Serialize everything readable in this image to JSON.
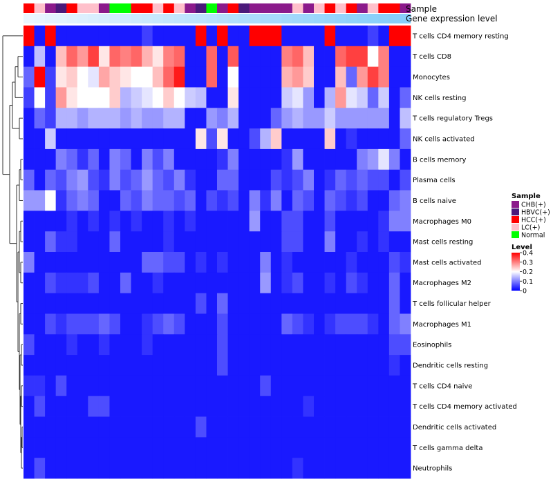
{
  "chart_data": {
    "type": "heatmap",
    "title": "",
    "annotation_tracks": [
      {
        "name": "Sample",
        "label": "Sample"
      },
      {
        "name": "Gene expression level",
        "label": "Gene expression level"
      }
    ],
    "sample_groups": [
      {
        "name": "CHB(+)",
        "color": "#8b1a8b"
      },
      {
        "name": "HBVC(+)",
        "color": "#4b1a7a"
      },
      {
        "name": "HCC(+)",
        "color": "#ff0000"
      },
      {
        "name": "LC(+)",
        "color": "#ffc0cb"
      },
      {
        "name": "Normal",
        "color": "#00ff00"
      }
    ],
    "sample_annotation": [
      "HCC(+)",
      "LC(+)",
      "CHB(+)",
      "HBVC(+)",
      "HCC(+)",
      "LC(+)",
      "LC(+)",
      "CHB(+)",
      "Normal",
      "Normal",
      "HCC(+)",
      "HCC(+)",
      "LC(+)",
      "HCC(+)",
      "LC(+)",
      "CHB(+)",
      "HBVC(+)",
      "Normal",
      "CHB(+)",
      "HCC(+)",
      "HBVC(+)",
      "CHB(+)",
      "CHB(+)",
      "CHB(+)",
      "CHB(+)",
      "LC(+)",
      "CHB(+)",
      "LC(+)",
      "HCC(+)",
      "LC(+)",
      "HCC(+)",
      "CHB(+)",
      "LC(+)",
      "HCC(+)",
      "HCC(+)",
      "CHB(+)"
    ],
    "expression_annotation_colors": {
      "left": "#f0f8ff",
      "right": "#87cefa"
    },
    "expression_annotation": [
      0.05,
      0.08,
      0.11,
      0.13,
      0.16,
      0.19,
      0.22,
      0.25,
      0.28,
      0.3,
      0.33,
      0.36,
      0.39,
      0.42,
      0.45,
      0.48,
      0.5,
      0.53,
      0.56,
      0.59,
      0.62,
      0.65,
      0.68,
      0.7,
      0.73,
      0.76,
      0.79,
      0.82,
      0.85,
      0.88,
      0.91,
      0.93,
      0.95,
      0.97,
      0.99,
      1.0
    ],
    "rows": [
      "T cells CD4 memory resting",
      "T cells CD8",
      "Monocytes",
      "NK cells resting",
      "T cells regulatory  Tregs",
      "NK cells activated",
      "B cells memory",
      "Plasma cells",
      "B cells naive",
      "Macrophages M0",
      "Mast cells resting",
      "Mast cells activated",
      "Macrophages M2",
      "T cells follicular helper",
      "Macrophages M1",
      "Eosinophils",
      "Dendritic cells resting",
      "T cells CD4 naive",
      "T cells CD4 memory activated",
      "Dendritic cells activated",
      "T cells gamma delta",
      "Neutrophils"
    ],
    "values": [
      [
        0.4,
        0.02,
        0.4,
        0.02,
        0.02,
        0.02,
        0.02,
        0.02,
        0.02,
        0.02,
        0.02,
        0.05,
        0.02,
        0.02,
        0.02,
        0.02,
        0.4,
        0.02,
        0.4,
        0.02,
        0.02,
        0.4,
        0.4,
        0.4,
        0.02,
        0.02,
        0.02,
        0.02,
        0.4,
        0.02,
        0.02,
        0.02,
        0.05,
        0.02,
        0.4,
        0.4
      ],
      [
        0.02,
        0.15,
        0.02,
        0.25,
        0.32,
        0.28,
        0.35,
        0.22,
        0.32,
        0.3,
        0.32,
        0.26,
        0.22,
        0.3,
        0.32,
        0.02,
        0.02,
        0.32,
        0.02,
        0.33,
        0.02,
        0.02,
        0.02,
        0.02,
        0.3,
        0.32,
        0.25,
        0.02,
        0.02,
        0.32,
        0.35,
        0.35,
        0.2,
        0.3,
        0.02,
        0.02
      ],
      [
        0.08,
        0.4,
        0.05,
        0.22,
        0.24,
        0.2,
        0.18,
        0.27,
        0.24,
        0.22,
        0.2,
        0.2,
        0.25,
        0.32,
        0.38,
        0.02,
        0.02,
        0.32,
        0.02,
        0.2,
        0.02,
        0.02,
        0.02,
        0.02,
        0.26,
        0.28,
        0.24,
        0.02,
        0.02,
        0.25,
        0.08,
        0.28,
        0.35,
        0.3,
        0.02,
        0.02
      ],
      [
        0.05,
        0.2,
        0.05,
        0.28,
        0.22,
        0.2,
        0.2,
        0.2,
        0.24,
        0.14,
        0.16,
        0.18,
        0.2,
        0.24,
        0.2,
        0.16,
        0.15,
        0.02,
        0.02,
        0.22,
        0.02,
        0.02,
        0.02,
        0.02,
        0.16,
        0.18,
        0.12,
        0.02,
        0.14,
        0.28,
        0.18,
        0.16,
        0.08,
        0.16,
        0.02,
        0.08
      ],
      [
        0.02,
        0.08,
        0.05,
        0.14,
        0.14,
        0.12,
        0.14,
        0.14,
        0.14,
        0.12,
        0.14,
        0.12,
        0.12,
        0.14,
        0.14,
        0.02,
        0.02,
        0.12,
        0.1,
        0.14,
        0.02,
        0.02,
        0.02,
        0.08,
        0.12,
        0.14,
        0.12,
        0.12,
        0.16,
        0.12,
        0.12,
        0.12,
        0.12,
        0.12,
        0.02,
        0.15
      ],
      [
        0.02,
        0.02,
        0.16,
        0.02,
        0.02,
        0.02,
        0.02,
        0.02,
        0.02,
        0.02,
        0.02,
        0.02,
        0.02,
        0.02,
        0.02,
        0.02,
        0.22,
        0.06,
        0.22,
        0.02,
        0.02,
        0.06,
        0.14,
        0.24,
        0.02,
        0.02,
        0.02,
        0.02,
        0.24,
        0.02,
        0.04,
        0.02,
        0.02,
        0.02,
        0.02,
        0.08
      ],
      [
        0.02,
        0.02,
        0.02,
        0.1,
        0.08,
        0.04,
        0.08,
        0.02,
        0.1,
        0.08,
        0.02,
        0.1,
        0.06,
        0.1,
        0.02,
        0.02,
        0.02,
        0.02,
        0.04,
        0.1,
        0.02,
        0.02,
        0.02,
        0.02,
        0.04,
        0.12,
        0.02,
        0.02,
        0.02,
        0.02,
        0.02,
        0.1,
        0.12,
        0.18,
        0.1,
        0.02
      ],
      [
        0.08,
        0.02,
        0.08,
        0.06,
        0.1,
        0.12,
        0.06,
        0.04,
        0.1,
        0.06,
        0.08,
        0.12,
        0.08,
        0.06,
        0.1,
        0.04,
        0.02,
        0.02,
        0.08,
        0.08,
        0.02,
        0.02,
        0.02,
        0.06,
        0.04,
        0.06,
        0.1,
        0.02,
        0.04,
        0.08,
        0.06,
        0.08,
        0.06,
        0.06,
        0.02,
        0.06
      ],
      [
        0.12,
        0.12,
        0.2,
        0.04,
        0.08,
        0.1,
        0.08,
        0.02,
        0.02,
        0.08,
        0.06,
        0.1,
        0.08,
        0.08,
        0.06,
        0.08,
        0.02,
        0.06,
        0.04,
        0.06,
        0.02,
        0.1,
        0.04,
        0.1,
        0.02,
        0.08,
        0.06,
        0.02,
        0.08,
        0.06,
        0.04,
        0.06,
        0.02,
        0.02,
        0.08,
        0.1
      ],
      [
        0.02,
        0.02,
        0.02,
        0.02,
        0.04,
        0.02,
        0.04,
        0.02,
        0.04,
        0.02,
        0.04,
        0.02,
        0.02,
        0.04,
        0.02,
        0.04,
        0.02,
        0.02,
        0.02,
        0.02,
        0.02,
        0.12,
        0.02,
        0.02,
        0.06,
        0.06,
        0.02,
        0.02,
        0.06,
        0.02,
        0.02,
        0.02,
        0.02,
        0.04,
        0.1,
        0.1
      ],
      [
        0.02,
        0.02,
        0.08,
        0.04,
        0.04,
        0.02,
        0.02,
        0.02,
        0.08,
        0.02,
        0.02,
        0.02,
        0.02,
        0.04,
        0.02,
        0.02,
        0.02,
        0.02,
        0.02,
        0.02,
        0.02,
        0.02,
        0.02,
        0.02,
        0.06,
        0.06,
        0.02,
        0.02,
        0.1,
        0.02,
        0.02,
        0.04,
        0.02,
        0.04,
        0.02,
        0.02
      ],
      [
        0.1,
        0.02,
        0.02,
        0.02,
        0.02,
        0.02,
        0.02,
        0.02,
        0.02,
        0.02,
        0.02,
        0.08,
        0.08,
        0.06,
        0.06,
        0.02,
        0.04,
        0.02,
        0.04,
        0.02,
        0.02,
        0.02,
        0.1,
        0.02,
        0.04,
        0.02,
        0.02,
        0.02,
        0.02,
        0.02,
        0.04,
        0.02,
        0.02,
        0.02,
        0.06,
        0.04
      ],
      [
        0.02,
        0.02,
        0.06,
        0.04,
        0.04,
        0.04,
        0.06,
        0.02,
        0.02,
        0.08,
        0.02,
        0.02,
        0.04,
        0.02,
        0.02,
        0.02,
        0.02,
        0.02,
        0.02,
        0.02,
        0.02,
        0.02,
        0.12,
        0.02,
        0.04,
        0.06,
        0.02,
        0.02,
        0.04,
        0.02,
        0.06,
        0.04,
        0.02,
        0.02,
        0.08,
        0.02
      ],
      [
        0.02,
        0.02,
        0.02,
        0.02,
        0.02,
        0.02,
        0.02,
        0.02,
        0.02,
        0.02,
        0.02,
        0.02,
        0.02,
        0.02,
        0.02,
        0.02,
        0.06,
        0.02,
        0.08,
        0.02,
        0.02,
        0.02,
        0.02,
        0.02,
        0.02,
        0.02,
        0.02,
        0.02,
        0.02,
        0.02,
        0.02,
        0.02,
        0.02,
        0.02,
        0.08,
        0.02
      ],
      [
        0.02,
        0.02,
        0.06,
        0.04,
        0.06,
        0.06,
        0.06,
        0.08,
        0.06,
        0.02,
        0.02,
        0.04,
        0.06,
        0.08,
        0.06,
        0.02,
        0.02,
        0.02,
        0.06,
        0.02,
        0.02,
        0.02,
        0.02,
        0.02,
        0.08,
        0.06,
        0.04,
        0.02,
        0.04,
        0.06,
        0.06,
        0.06,
        0.04,
        0.02,
        0.08,
        0.1
      ],
      [
        0.06,
        0.02,
        0.02,
        0.02,
        0.04,
        0.02,
        0.02,
        0.04,
        0.02,
        0.02,
        0.02,
        0.04,
        0.02,
        0.02,
        0.02,
        0.02,
        0.02,
        0.02,
        0.06,
        0.02,
        0.02,
        0.02,
        0.02,
        0.02,
        0.02,
        0.02,
        0.02,
        0.02,
        0.02,
        0.02,
        0.02,
        0.02,
        0.02,
        0.02,
        0.06,
        0.06
      ],
      [
        0.02,
        0.02,
        0.02,
        0.02,
        0.02,
        0.02,
        0.02,
        0.02,
        0.02,
        0.02,
        0.02,
        0.02,
        0.02,
        0.02,
        0.02,
        0.02,
        0.02,
        0.02,
        0.06,
        0.02,
        0.02,
        0.02,
        0.02,
        0.02,
        0.02,
        0.02,
        0.02,
        0.02,
        0.02,
        0.02,
        0.02,
        0.02,
        0.02,
        0.02,
        0.04,
        0.02
      ],
      [
        0.04,
        0.04,
        0.02,
        0.06,
        0.02,
        0.02,
        0.02,
        0.02,
        0.02,
        0.02,
        0.02,
        0.02,
        0.02,
        0.02,
        0.02,
        0.02,
        0.02,
        0.02,
        0.02,
        0.02,
        0.02,
        0.02,
        0.06,
        0.02,
        0.02,
        0.02,
        0.02,
        0.02,
        0.02,
        0.02,
        0.02,
        0.02,
        0.02,
        0.02,
        0.02,
        0.02
      ],
      [
        0.02,
        0.06,
        0.02,
        0.02,
        0.02,
        0.02,
        0.06,
        0.06,
        0.02,
        0.02,
        0.02,
        0.02,
        0.02,
        0.02,
        0.02,
        0.02,
        0.02,
        0.02,
        0.02,
        0.02,
        0.02,
        0.02,
        0.02,
        0.02,
        0.02,
        0.02,
        0.04,
        0.02,
        0.02,
        0.02,
        0.02,
        0.02,
        0.02,
        0.02,
        0.02,
        0.02
      ],
      [
        0.02,
        0.02,
        0.02,
        0.02,
        0.02,
        0.02,
        0.02,
        0.02,
        0.02,
        0.02,
        0.02,
        0.02,
        0.02,
        0.02,
        0.02,
        0.02,
        0.06,
        0.02,
        0.02,
        0.02,
        0.02,
        0.02,
        0.02,
        0.02,
        0.02,
        0.02,
        0.02,
        0.02,
        0.02,
        0.02,
        0.02,
        0.02,
        0.02,
        0.02,
        0.02,
        0.02
      ],
      [
        0.02,
        0.02,
        0.02,
        0.02,
        0.02,
        0.02,
        0.02,
        0.02,
        0.02,
        0.02,
        0.02,
        0.02,
        0.02,
        0.02,
        0.02,
        0.02,
        0.02,
        0.02,
        0.02,
        0.02,
        0.02,
        0.02,
        0.02,
        0.02,
        0.02,
        0.02,
        0.02,
        0.02,
        0.02,
        0.02,
        0.02,
        0.02,
        0.02,
        0.02,
        0.02,
        0.02
      ],
      [
        0.02,
        0.06,
        0.02,
        0.02,
        0.02,
        0.02,
        0.02,
        0.02,
        0.02,
        0.02,
        0.02,
        0.02,
        0.02,
        0.02,
        0.02,
        0.02,
        0.02,
        0.02,
        0.02,
        0.02,
        0.02,
        0.02,
        0.02,
        0.02,
        0.02,
        0.04,
        0.02,
        0.02,
        0.02,
        0.02,
        0.02,
        0.02,
        0.02,
        0.02,
        0.02,
        0.02
      ]
    ],
    "color_scale": {
      "min": 0,
      "max": 0.4,
      "low_color": "#0000ff",
      "mid_color": "#ffffff",
      "high_color": "#ff0000"
    },
    "legend": {
      "sample_title": "Sample",
      "level_title": "Level",
      "level_ticks": [
        "0.4",
        "0.3",
        "0.2",
        "0.1",
        "0"
      ],
      "level_tick_values": [
        0.4,
        0.3,
        0.2,
        0.1,
        0
      ],
      "placement": "right"
    },
    "dendrogram": "rows, left side"
  }
}
